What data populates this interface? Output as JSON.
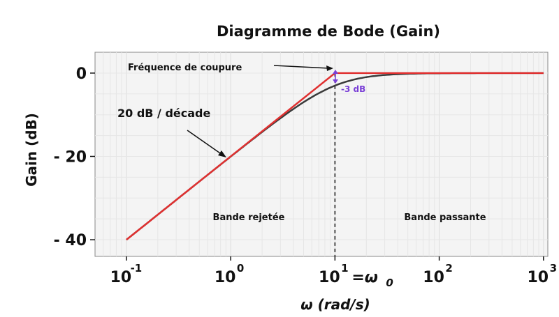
{
  "chart_data": {
    "type": "line",
    "title": "Diagramme de Bode (Gain)",
    "xlabel": "ω (rad/s)",
    "ylabel": "Gain (dB)",
    "xscale": "log",
    "xlim": [
      0.05,
      1100
    ],
    "ylim": [
      -44,
      5
    ],
    "grid": true,
    "x_ticks": [
      {
        "value": 0.1,
        "base": "10",
        "exp": "-1"
      },
      {
        "value": 1,
        "base": "10",
        "exp": "0"
      },
      {
        "value": 10,
        "base": "10",
        "exp": "1"
      },
      {
        "value": 100,
        "base": "10",
        "exp": "2"
      },
      {
        "value": 1000,
        "base": "10",
        "exp": "3"
      }
    ],
    "omega0_label": "=ω",
    "omega0_sub": "0",
    "y_ticks": [
      {
        "value": 0,
        "label": "0"
      },
      {
        "value": -20,
        "label": "- 20"
      },
      {
        "value": -40,
        "label": "- 40"
      }
    ],
    "cutoff": 10,
    "series": [
      {
        "kind": "asymptote",
        "color": "#e03030",
        "x": [
          0.1,
          10,
          1000
        ],
        "y": [
          -40,
          0,
          0
        ]
      },
      {
        "kind": "real",
        "color": "#3a3a3a",
        "x_range": [
          0.1,
          1000
        ]
      }
    ],
    "annotations": {
      "cutoff_label": "Fréquence de coupure",
      "slope_label": "20 dB / décade",
      "minus3db_label": "-3 dB",
      "rejected_band": "Bande rejetée",
      "pass_band": "Bande passante"
    }
  }
}
